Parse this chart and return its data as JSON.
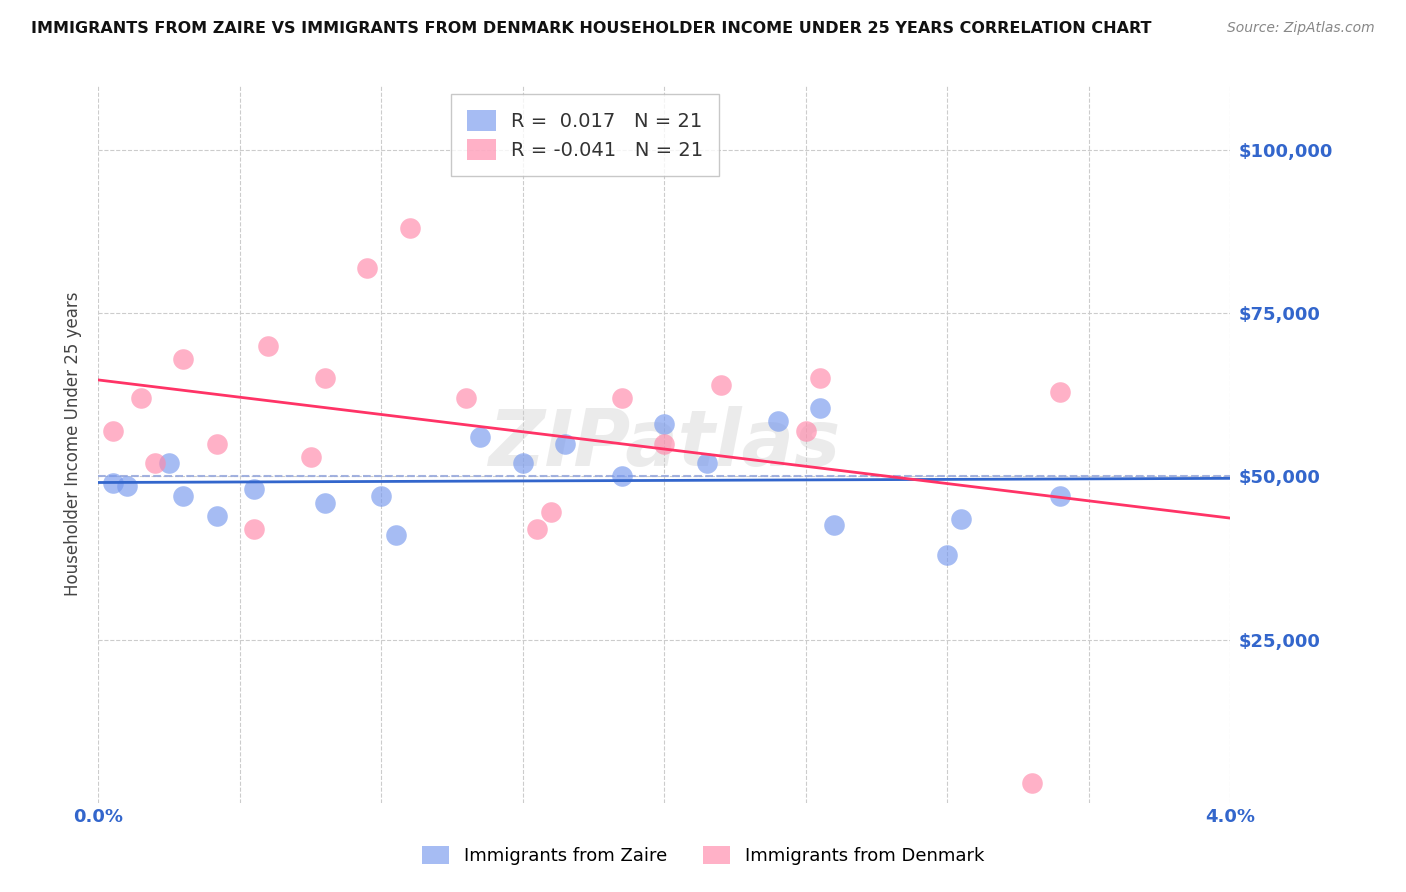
{
  "title": "IMMIGRANTS FROM ZAIRE VS IMMIGRANTS FROM DENMARK HOUSEHOLDER INCOME UNDER 25 YEARS CORRELATION CHART",
  "source": "Source: ZipAtlas.com",
  "ylabel": "Householder Income Under 25 years",
  "xlim": [
    0.0,
    0.04
  ],
  "ylim": [
    0,
    110000
  ],
  "y_ticks": [
    0,
    25000,
    50000,
    75000,
    100000
  ],
  "y_tick_labels": [
    "",
    "$25,000",
    "$50,000",
    "$75,000",
    "$100,000"
  ],
  "x_ticks": [
    0.0,
    0.005,
    0.01,
    0.015,
    0.02,
    0.025,
    0.03,
    0.035,
    0.04
  ],
  "zaire_R": 0.017,
  "zaire_N": 21,
  "denmark_R": -0.041,
  "denmark_N": 21,
  "zaire_color": "#7799ee",
  "denmark_color": "#ff88aa",
  "trend_zaire_color": "#3366cc",
  "trend_denmark_color": "#ff3366",
  "ref_line_color": "#99aadd",
  "background_color": "#ffffff",
  "grid_color": "#cccccc",
  "title_color": "#111111",
  "axis_label_color": "#3366cc",
  "watermark": "ZIPatlas",
  "zaire_x": [
    0.0005,
    0.001,
    0.0025,
    0.003,
    0.0042,
    0.0055,
    0.008,
    0.01,
    0.0105,
    0.0135,
    0.015,
    0.0165,
    0.0185,
    0.02,
    0.0215,
    0.024,
    0.0255,
    0.026,
    0.03,
    0.0305,
    0.034
  ],
  "zaire_y": [
    49000,
    48500,
    52000,
    47000,
    44000,
    48000,
    46000,
    47000,
    41000,
    56000,
    52000,
    55000,
    50000,
    58000,
    52000,
    58500,
    60500,
    42500,
    38000,
    43500,
    47000
  ],
  "denmark_x": [
    0.0005,
    0.0015,
    0.002,
    0.003,
    0.0042,
    0.0055,
    0.006,
    0.0075,
    0.008,
    0.0095,
    0.011,
    0.013,
    0.0155,
    0.016,
    0.0185,
    0.02,
    0.022,
    0.025,
    0.0255,
    0.033,
    0.034
  ],
  "denmark_y": [
    57000,
    62000,
    52000,
    68000,
    55000,
    42000,
    70000,
    53000,
    65000,
    82000,
    88000,
    62000,
    42000,
    44500,
    62000,
    55000,
    64000,
    57000,
    65000,
    3000,
    63000
  ]
}
